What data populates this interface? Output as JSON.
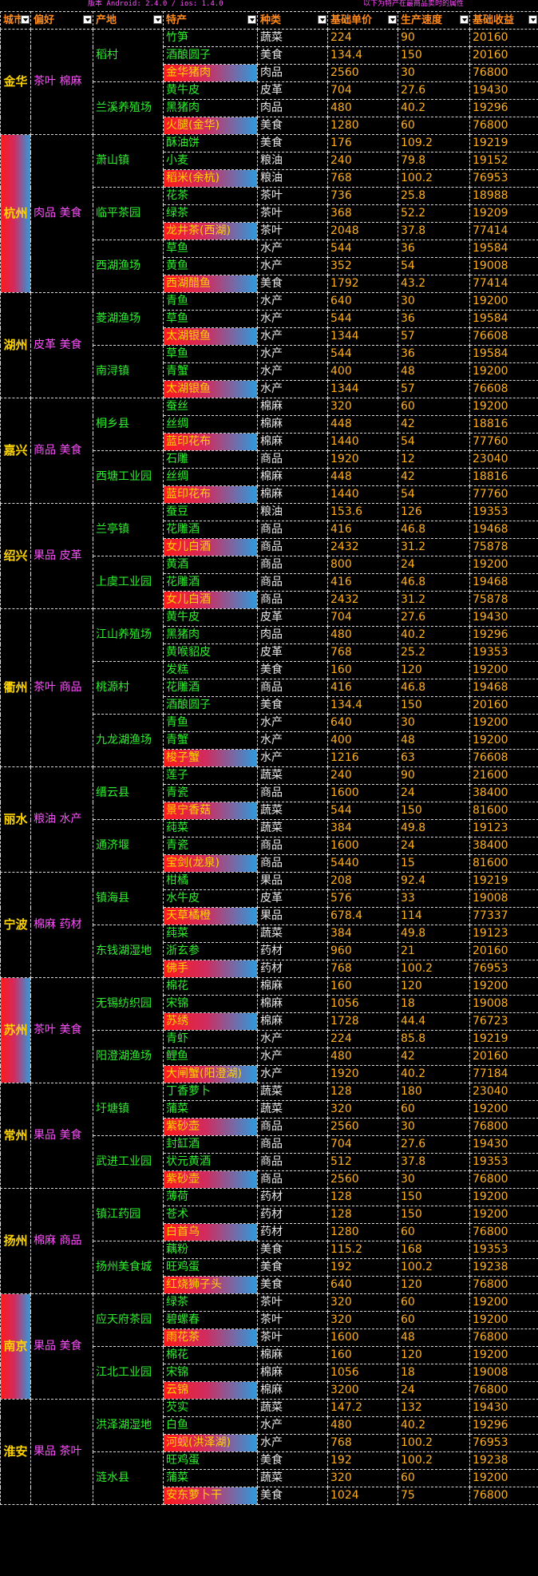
{
  "header": {
    "version": "版本 Android: 2.4.0 / ios: 1.4.0",
    "note": "以下为特产在最商品卖时的属性"
  },
  "columns": [
    "城市",
    "偏好",
    "产地",
    "特产",
    "种类",
    "基础单价",
    "生产速度",
    "基础收益"
  ],
  "cities": [
    {
      "name": "金华",
      "tags": "茶叶 棉麻",
      "hl": false,
      "origins": [
        {
          "name": "稻村",
          "rows": [
            {
              "p": "竹笋",
              "k": "蔬菜",
              "a": "224",
              "b": "90",
              "c": "20160"
            },
            {
              "p": "酒酿圆子",
              "k": "美食",
              "a": "134.4",
              "b": "150",
              "c": "20160"
            },
            {
              "p": "金华猪肉",
              "k": "肉品",
              "a": "2560",
              "b": "30",
              "c": "76800",
              "s": true
            }
          ]
        },
        {
          "name": "兰溪养殖场",
          "rows": [
            {
              "p": "黄牛皮",
              "k": "皮革",
              "a": "704",
              "b": "27.6",
              "c": "19430"
            },
            {
              "p": "黑猪肉",
              "k": "肉品",
              "a": "480",
              "b": "40.2",
              "c": "19296"
            },
            {
              "p": "火腿(金华)",
              "k": "美食",
              "a": "1280",
              "b": "60",
              "c": "76800",
              "s": true
            }
          ]
        }
      ]
    },
    {
      "name": "杭州",
      "tags": "肉品 美食",
      "hl": true,
      "origins": [
        {
          "name": "萧山镇",
          "rows": [
            {
              "p": "酥油饼",
              "k": "美食",
              "a": "176",
              "b": "109.2",
              "c": "19219"
            },
            {
              "p": "小麦",
              "k": "粮油",
              "a": "240",
              "b": "79.8",
              "c": "19152"
            },
            {
              "p": "稻米(余杭)",
              "k": "粮油",
              "a": "768",
              "b": "100.2",
              "c": "76953",
              "s": true
            }
          ]
        },
        {
          "name": "临平茶园",
          "rows": [
            {
              "p": "花茶",
              "k": "茶叶",
              "a": "736",
              "b": "25.8",
              "c": "18988"
            },
            {
              "p": "绿茶",
              "k": "茶叶",
              "a": "368",
              "b": "52.2",
              "c": "19209"
            },
            {
              "p": "龙井茶(西湖)",
              "k": "茶叶",
              "a": "2048",
              "b": "37.8",
              "c": "77414",
              "s": true
            }
          ]
        },
        {
          "name": "西湖渔场",
          "rows": [
            {
              "p": "草鱼",
              "k": "水产",
              "a": "544",
              "b": "36",
              "c": "19584"
            },
            {
              "p": "黄鱼",
              "k": "水产",
              "a": "352",
              "b": "54",
              "c": "19008"
            },
            {
              "p": "西湖醋鱼",
              "k": "美食",
              "a": "1792",
              "b": "43.2",
              "c": "77414",
              "s": true
            }
          ]
        }
      ]
    },
    {
      "name": "湖州",
      "tags": "皮革 美食",
      "hl": false,
      "origins": [
        {
          "name": "菱湖渔场",
          "rows": [
            {
              "p": "青鱼",
              "k": "水产",
              "a": "640",
              "b": "30",
              "c": "19200"
            },
            {
              "p": "草鱼",
              "k": "水产",
              "a": "544",
              "b": "36",
              "c": "19584"
            },
            {
              "p": "太湖银鱼",
              "k": "水产",
              "a": "1344",
              "b": "57",
              "c": "76608",
              "s": true
            }
          ]
        },
        {
          "name": "南浔镇",
          "rows": [
            {
              "p": "草鱼",
              "k": "水产",
              "a": "544",
              "b": "36",
              "c": "19584"
            },
            {
              "p": "青蟹",
              "k": "水产",
              "a": "400",
              "b": "48",
              "c": "19200"
            },
            {
              "p": "太湖银鱼",
              "k": "水产",
              "a": "1344",
              "b": "57",
              "c": "76608",
              "s": true
            }
          ]
        }
      ]
    },
    {
      "name": "嘉兴",
      "tags": "商品 美食",
      "hl": false,
      "origins": [
        {
          "name": "桐乡县",
          "rows": [
            {
              "p": "蚕丝",
              "k": "棉麻",
              "a": "320",
              "b": "60",
              "c": "19200"
            },
            {
              "p": "丝绸",
              "k": "棉麻",
              "a": "448",
              "b": "42",
              "c": "18816"
            },
            {
              "p": "蓝印花布",
              "k": "棉麻",
              "a": "1440",
              "b": "54",
              "c": "77760",
              "s": true
            }
          ]
        },
        {
          "name": "西塘工业园",
          "rows": [
            {
              "p": "石雕",
              "k": "商品",
              "a": "1920",
              "b": "12",
              "c": "23040"
            },
            {
              "p": "丝绸",
              "k": "棉麻",
              "a": "448",
              "b": "42",
              "c": "18816"
            },
            {
              "p": "蓝印花布",
              "k": "棉麻",
              "a": "1440",
              "b": "54",
              "c": "77760",
              "s": true
            }
          ]
        }
      ]
    },
    {
      "name": "绍兴",
      "tags": "果品 皮革",
      "hl": false,
      "origins": [
        {
          "name": "兰亭镇",
          "rows": [
            {
              "p": "蚕豆",
              "k": "粮油",
              "a": "153.6",
              "b": "126",
              "c": "19353"
            },
            {
              "p": "花雕酒",
              "k": "商品",
              "a": "416",
              "b": "46.8",
              "c": "19468"
            },
            {
              "p": "女儿白酒",
              "k": "商品",
              "a": "2432",
              "b": "31.2",
              "c": "75878",
              "s": true
            }
          ]
        },
        {
          "name": "上虞工业园",
          "rows": [
            {
              "p": "黄酒",
              "k": "商品",
              "a": "800",
              "b": "24",
              "c": "19200"
            },
            {
              "p": "花雕酒",
              "k": "商品",
              "a": "416",
              "b": "46.8",
              "c": "19468"
            },
            {
              "p": "女儿白酒",
              "k": "商品",
              "a": "2432",
              "b": "31.2",
              "c": "75878",
              "s": true
            }
          ]
        }
      ]
    },
    {
      "name": "衢州",
      "tags": "茶叶 商品",
      "hl": false,
      "origins": [
        {
          "name": "江山养殖场",
          "rows": [
            {
              "p": "黄牛皮",
              "k": "皮革",
              "a": "704",
              "b": "27.6",
              "c": "19430"
            },
            {
              "p": "黑猪肉",
              "k": "肉品",
              "a": "480",
              "b": "40.2",
              "c": "19296"
            },
            {
              "p": "黄喉貂皮",
              "k": "皮革",
              "a": "768",
              "b": "25.2",
              "c": "19353"
            }
          ]
        },
        {
          "name": "桃源村",
          "rows": [
            {
              "p": "发糕",
              "k": "美食",
              "a": "160",
              "b": "120",
              "c": "19200"
            },
            {
              "p": "花雕酒",
              "k": "商品",
              "a": "416",
              "b": "46.8",
              "c": "19468"
            },
            {
              "p": "酒酿圆子",
              "k": "美食",
              "a": "134.4",
              "b": "150",
              "c": "20160"
            }
          ]
        },
        {
          "name": "九龙湖渔场",
          "rows": [
            {
              "p": "青鱼",
              "k": "水产",
              "a": "640",
              "b": "30",
              "c": "19200"
            },
            {
              "p": "青蟹",
              "k": "水产",
              "a": "400",
              "b": "48",
              "c": "19200"
            },
            {
              "p": "梭子蟹",
              "k": "水产",
              "a": "1216",
              "b": "63",
              "c": "76608",
              "s": true
            }
          ]
        }
      ]
    },
    {
      "name": "丽水",
      "tags": "粮油 水产",
      "hl": false,
      "origins": [
        {
          "name": "缙云县",
          "rows": [
            {
              "p": "莲子",
              "k": "蔬菜",
              "a": "240",
              "b": "90",
              "c": "21600"
            },
            {
              "p": "青瓷",
              "k": "商品",
              "a": "1600",
              "b": "24",
              "c": "38400"
            },
            {
              "p": "景宁香菇",
              "k": "蔬菜",
              "a": "544",
              "b": "150",
              "c": "81600",
              "s": true
            }
          ]
        },
        {
          "name": "通济堰",
          "rows": [
            {
              "p": "莼菜",
              "k": "蔬菜",
              "a": "384",
              "b": "49.8",
              "c": "19123"
            },
            {
              "p": "青瓷",
              "k": "商品",
              "a": "1600",
              "b": "24",
              "c": "38400"
            },
            {
              "p": "宝剑(龙泉)",
              "k": "商品",
              "a": "5440",
              "b": "15",
              "c": "81600",
              "s": true
            }
          ]
        }
      ]
    },
    {
      "name": "宁波",
      "tags": "棉麻 药材",
      "hl": false,
      "origins": [
        {
          "name": "镇海县",
          "rows": [
            {
              "p": "柑橘",
              "k": "果品",
              "a": "208",
              "b": "92.4",
              "c": "19219"
            },
            {
              "p": "水牛皮",
              "k": "皮革",
              "a": "576",
              "b": "33",
              "c": "19008"
            },
            {
              "p": "天草橘橙",
              "k": "果品",
              "a": "678.4",
              "b": "114",
              "c": "77337",
              "s": true
            }
          ]
        },
        {
          "name": "东钱湖湿地",
          "rows": [
            {
              "p": "莼菜",
              "k": "蔬菜",
              "a": "384",
              "b": "49.8",
              "c": "19123"
            },
            {
              "p": "浙玄参",
              "k": "药材",
              "a": "960",
              "b": "21",
              "c": "20160"
            },
            {
              "p": "佛手",
              "k": "药材",
              "a": "768",
              "b": "100.2",
              "c": "76953",
              "s": true
            }
          ]
        }
      ]
    },
    {
      "name": "苏州",
      "tags": "茶叶 美食",
      "hl": true,
      "origins": [
        {
          "name": "无锡纺织园",
          "rows": [
            {
              "p": "棉花",
              "k": "棉麻",
              "a": "160",
              "b": "120",
              "c": "19200"
            },
            {
              "p": "宋锦",
              "k": "棉麻",
              "a": "1056",
              "b": "18",
              "c": "19008"
            },
            {
              "p": "苏绣",
              "k": "棉麻",
              "a": "1728",
              "b": "44.4",
              "c": "76723",
              "s": true
            }
          ]
        },
        {
          "name": "阳澄湖渔场",
          "rows": [
            {
              "p": "青虾",
              "k": "水产",
              "a": "224",
              "b": "85.8",
              "c": "19219"
            },
            {
              "p": "鲤鱼",
              "k": "水产",
              "a": "480",
              "b": "42",
              "c": "20160"
            },
            {
              "p": "大闸蟹(阳澄湖)",
              "k": "水产",
              "a": "1920",
              "b": "40.2",
              "c": "77184",
              "s": true
            }
          ]
        }
      ]
    },
    {
      "name": "常州",
      "tags": "果品 美食",
      "hl": false,
      "origins": [
        {
          "name": "圩塘镇",
          "rows": [
            {
              "p": "丁香萝卜",
              "k": "蔬菜",
              "a": "128",
              "b": "180",
              "c": "23040"
            },
            {
              "p": "蒲菜",
              "k": "蔬菜",
              "a": "320",
              "b": "60",
              "c": "19200"
            },
            {
              "p": "紫砂壶",
              "k": "商品",
              "a": "2560",
              "b": "30",
              "c": "76800",
              "s": true
            }
          ]
        },
        {
          "name": "武进工业园",
          "rows": [
            {
              "p": "封缸酒",
              "k": "商品",
              "a": "704",
              "b": "27.6",
              "c": "19430"
            },
            {
              "p": "状元黄酒",
              "k": "商品",
              "a": "512",
              "b": "37.8",
              "c": "19353"
            },
            {
              "p": "紫砂壶",
              "k": "商品",
              "a": "2560",
              "b": "30",
              "c": "76800",
              "s": true
            }
          ]
        }
      ]
    },
    {
      "name": "扬州",
      "tags": "棉麻 商品",
      "hl": false,
      "origins": [
        {
          "name": "镇江药园",
          "rows": [
            {
              "p": "薄荷",
              "k": "药材",
              "a": "128",
              "b": "150",
              "c": "19200"
            },
            {
              "p": "苍术",
              "k": "药材",
              "a": "128",
              "b": "150",
              "c": "19200"
            },
            {
              "p": "白首乌",
              "k": "药材",
              "a": "1280",
              "b": "60",
              "c": "76800",
              "s": true
            }
          ]
        },
        {
          "name": "扬州美食城",
          "rows": [
            {
              "p": "藕粉",
              "k": "美食",
              "a": "115.2",
              "b": "168",
              "c": "19353"
            },
            {
              "p": "旺鸡蛋",
              "k": "美食",
              "a": "192",
              "b": "100.2",
              "c": "19238"
            },
            {
              "p": "红烧狮子头",
              "k": "美食",
              "a": "640",
              "b": "120",
              "c": "76800",
              "s": true
            }
          ]
        }
      ]
    },
    {
      "name": "南京",
      "tags": "果品 美食",
      "hl": true,
      "origins": [
        {
          "name": "应天府茶园",
          "rows": [
            {
              "p": "绿茶",
              "k": "茶叶",
              "a": "320",
              "b": "60",
              "c": "19200"
            },
            {
              "p": "碧螺春",
              "k": "茶叶",
              "a": "320",
              "b": "60",
              "c": "19200"
            },
            {
              "p": "雨花茶",
              "k": "茶叶",
              "a": "1600",
              "b": "48",
              "c": "76800",
              "s": true
            }
          ]
        },
        {
          "name": "江北工业园",
          "rows": [
            {
              "p": "棉花",
              "k": "棉麻",
              "a": "160",
              "b": "120",
              "c": "19200"
            },
            {
              "p": "宋锦",
              "k": "棉麻",
              "a": "1056",
              "b": "18",
              "c": "19008"
            },
            {
              "p": "云锦",
              "k": "棉麻",
              "a": "3200",
              "b": "24",
              "c": "76800",
              "s": true
            }
          ]
        }
      ]
    },
    {
      "name": "淮安",
      "tags": "果品 茶叶",
      "hl": false,
      "origins": [
        {
          "name": "洪泽湖湿地",
          "rows": [
            {
              "p": "芡实",
              "k": "蔬菜",
              "a": "147.2",
              "b": "132",
              "c": "19430"
            },
            {
              "p": "白鱼",
              "k": "水产",
              "a": "480",
              "b": "40.2",
              "c": "19296"
            },
            {
              "p": "河蚬(洪泽湖)",
              "k": "水产",
              "a": "768",
              "b": "100.2",
              "c": "76953",
              "s": true
            }
          ]
        },
        {
          "name": "涟水县",
          "rows": [
            {
              "p": "旺鸡蛋",
              "k": "美食",
              "a": "192",
              "b": "100.2",
              "c": "19238"
            },
            {
              "p": "蒲菜",
              "k": "蔬菜",
              "a": "320",
              "b": "60",
              "c": "19200"
            },
            {
              "p": "安东萝卜干",
              "k": "美食",
              "a": "1024",
              "b": "75",
              "c": "76800",
              "s": true
            }
          ]
        }
      ]
    }
  ]
}
